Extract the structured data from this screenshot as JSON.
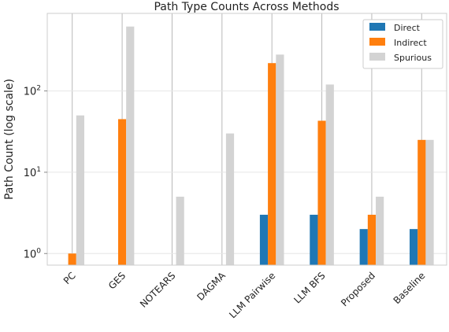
{
  "chart_data": {
    "type": "bar",
    "title": "Path Type Counts Across Methods",
    "xlabel": "",
    "ylabel": "Path Count (log scale)",
    "yscale": "log",
    "ylim": [
      0.72,
      900
    ],
    "yticks": [
      {
        "value": 1,
        "base": "10",
        "exp": "0"
      },
      {
        "value": 10,
        "base": "10",
        "exp": "1"
      },
      {
        "value": 100,
        "base": "10",
        "exp": "2"
      }
    ],
    "grid": true,
    "legend_position": "top-right",
    "categories": [
      "PC",
      "GES",
      "NOTEARS",
      "DAGMA",
      "LLM Pairwise",
      "LLM BFS",
      "Proposed",
      "Baseline"
    ],
    "series": [
      {
        "name": "Direct",
        "color": "#1f77b4",
        "values": [
          0,
          0,
          0,
          0,
          3,
          3,
          2,
          2
        ]
      },
      {
        "name": "Indirect",
        "color": "#ff7f0e",
        "values": [
          1,
          45,
          0,
          0,
          220,
          43,
          3,
          25
        ]
      },
      {
        "name": "Spurious",
        "color": "#d3d3d3",
        "values": [
          50,
          620,
          5,
          30,
          280,
          120,
          5,
          25
        ]
      }
    ]
  }
}
